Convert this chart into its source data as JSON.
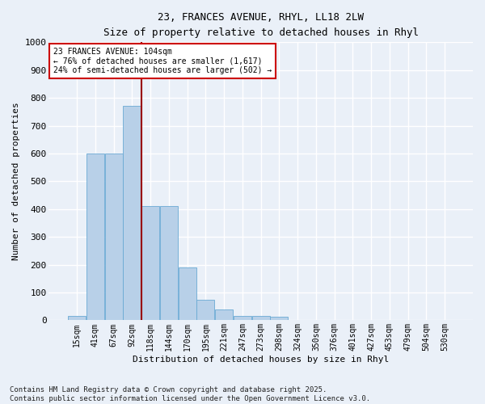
{
  "title_line1": "23, FRANCES AVENUE, RHYL, LL18 2LW",
  "title_line2": "Size of property relative to detached houses in Rhyl",
  "xlabel": "Distribution of detached houses by size in Rhyl",
  "ylabel": "Number of detached properties",
  "categories": [
    "15sqm",
    "41sqm",
    "67sqm",
    "92sqm",
    "118sqm",
    "144sqm",
    "170sqm",
    "195sqm",
    "221sqm",
    "247sqm",
    "273sqm",
    "298sqm",
    "324sqm",
    "350sqm",
    "376sqm",
    "401sqm",
    "427sqm",
    "453sqm",
    "479sqm",
    "504sqm",
    "530sqm"
  ],
  "values": [
    15,
    600,
    600,
    770,
    410,
    410,
    190,
    75,
    40,
    17,
    17,
    12,
    0,
    0,
    0,
    0,
    0,
    0,
    0,
    0,
    0
  ],
  "bar_color": "#b8d0e8",
  "bar_edge_color": "#6aaad4",
  "vline_x": 3.5,
  "vline_color": "#990000",
  "annotation_line1": "23 FRANCES AVENUE: 104sqm",
  "annotation_line2": "← 76% of detached houses are smaller (1,617)",
  "annotation_line3": "24% of semi-detached houses are larger (502) →",
  "annotation_box_color": "#ffffff",
  "annotation_box_edge": "#cc0000",
  "ylim": [
    0,
    1000
  ],
  "yticks": [
    0,
    100,
    200,
    300,
    400,
    500,
    600,
    700,
    800,
    900,
    1000
  ],
  "bg_color": "#eaf0f8",
  "grid_color": "#ffffff",
  "footer": "Contains HM Land Registry data © Crown copyright and database right 2025.\nContains public sector information licensed under the Open Government Licence v3.0.",
  "figsize": [
    6.0,
    5.0
  ],
  "dpi": 100
}
